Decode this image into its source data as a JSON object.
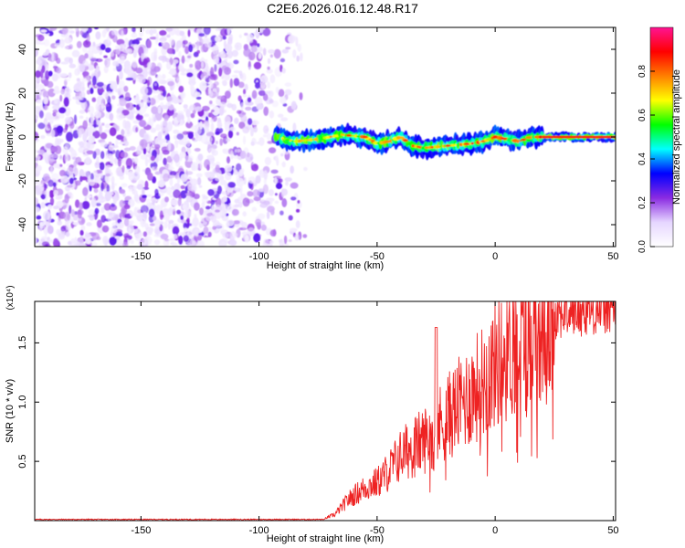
{
  "figure_title": "C2E6.2026.016.12.48.R17",
  "chart_data": [
    {
      "type": "heatmap",
      "title": "",
      "xlabel": "Height of straight line (km)",
      "ylabel": "Frequency (Hz)",
      "xlim": [
        -195,
        51
      ],
      "ylim": [
        -50,
        50
      ],
      "xticks": [
        -150,
        -100,
        -50,
        0,
        50
      ],
      "yticks": [
        -40,
        -20,
        0,
        20,
        40
      ],
      "colorbar": {
        "label": "Normalized spectral amplitude",
        "range": [
          0.0,
          1.0
        ],
        "ticks": [
          "0.0",
          "0.2",
          "0.4",
          "0.6",
          "0.8"
        ],
        "colors": [
          "#ffffff",
          "#e6d6ff",
          "#8a2be2",
          "#0000ff",
          "#00ffff",
          "#00ff00",
          "#ffff00",
          "#ff8000",
          "#ff0000",
          "#ff1493"
        ]
      },
      "regions": [
        {
          "name": "noise",
          "x_range": [
            -195,
            -80
          ],
          "freq_range": [
            -50,
            50
          ],
          "amplitude_range": [
            0.05,
            0.2
          ]
        },
        {
          "name": "signal-track",
          "x_range": [
            -93,
            51
          ],
          "center_freq_hz": [
            [
              -93,
              0
            ],
            [
              -85,
              -2
            ],
            [
              -75,
              -1
            ],
            [
              -65,
              1
            ],
            [
              -55,
              0
            ],
            [
              -50,
              -3
            ],
            [
              -45,
              -2
            ],
            [
              -40,
              0
            ],
            [
              -35,
              -4
            ],
            [
              -30,
              -5
            ],
            [
              -20,
              -4
            ],
            [
              -10,
              -3
            ],
            [
              -5,
              -2
            ],
            [
              0,
              0
            ],
            [
              5,
              -1
            ],
            [
              10,
              -2
            ],
            [
              15,
              0
            ],
            [
              20,
              0
            ],
            [
              30,
              0
            ],
            [
              40,
              0
            ],
            [
              51,
              0
            ]
          ],
          "amplitude_range": [
            0.3,
            0.95
          ]
        }
      ]
    },
    {
      "type": "line",
      "title": "",
      "xlabel": "Height of straight line (km)",
      "ylabel": "SNR (10 * v/v)",
      "y_exponent_label": "(x10⁴)",
      "xlim": [
        -195,
        51
      ],
      "ylim": [
        0,
        1.85
      ],
      "xticks": [
        -150,
        -100,
        -50,
        0,
        50
      ],
      "yticks": [
        "0.5",
        "1.0",
        "1.5"
      ],
      "series": [
        {
          "name": "SNR",
          "color": "#ee2222",
          "trend": [
            [
              -195,
              0.01
            ],
            [
              -150,
              0.01
            ],
            [
              -100,
              0.01
            ],
            [
              -80,
              0.01
            ],
            [
              -72,
              0.02
            ],
            [
              -68,
              0.05
            ],
            [
              -62,
              0.18
            ],
            [
              -55,
              0.28
            ],
            [
              -50,
              0.32
            ],
            [
              -45,
              0.42
            ],
            [
              -40,
              0.55
            ],
            [
              -35,
              0.62
            ],
            [
              -30,
              0.68
            ],
            [
              -25,
              0.78
            ],
            [
              -20,
              0.88
            ],
            [
              -15,
              0.98
            ],
            [
              -10,
              1.08
            ],
            [
              -5,
              1.18
            ],
            [
              0,
              1.32
            ],
            [
              5,
              1.42
            ],
            [
              10,
              1.52
            ],
            [
              15,
              1.62
            ],
            [
              20,
              1.7
            ],
            [
              25,
              1.74
            ],
            [
              30,
              1.76
            ],
            [
              40,
              1.78
            ],
            [
              51,
              1.8
            ]
          ]
        }
      ]
    }
  ]
}
